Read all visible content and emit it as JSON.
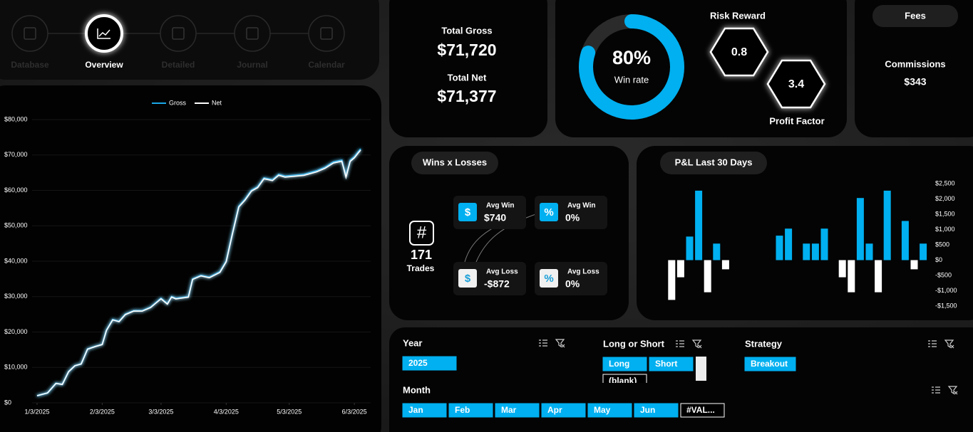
{
  "nav": {
    "items": [
      "Database",
      "Overview",
      "Detailed",
      "Journal",
      "Calendar"
    ],
    "active": 1
  },
  "kpi": {
    "gross_label": "Total Gross",
    "gross": "$71,720",
    "net_label": "Total Net",
    "net": "$71,377",
    "risk_label": "Risk Reward",
    "risk": "0.8",
    "pf_label": "Profit Factor",
    "pf": "3.4",
    "fees_title": "Fees",
    "comm_label": "Commissions",
    "comm": "$343"
  },
  "wins": {
    "title": "Wins x Losses",
    "hash": "#",
    "trades": "171",
    "trades_label": "Trades",
    "cards": [
      {
        "icon": "$",
        "label": "Avg Win",
        "value": "$740"
      },
      {
        "icon": "%",
        "label": "Avg Win",
        "value": "0%"
      },
      {
        "icon": "$",
        "label": "Avg Loss",
        "value": "-$872"
      },
      {
        "icon": "%",
        "label": "Avg Loss",
        "value": "0%"
      }
    ]
  },
  "pnl_title": "P&L Last 30 Days",
  "slicers": {
    "year": {
      "title": "Year",
      "items": [
        "2025"
      ]
    },
    "side": {
      "title": "Long or Short",
      "items": [
        "Long",
        "Short",
        "(blank)"
      ]
    },
    "strategy": {
      "title": "Strategy",
      "items": [
        "Breakout"
      ]
    },
    "month": {
      "title": "Month",
      "items": [
        "Jan",
        "Feb",
        "Mar",
        "Apr",
        "May",
        "Jun",
        "#VAL..."
      ]
    }
  },
  "chart_data": [
    {
      "type": "line",
      "x": [
        "1/3/2025",
        "1/8/2025",
        "1/12/2025",
        "1/15/2025",
        "1/18/2025",
        "1/21/2025",
        "1/24/2025",
        "1/27/2025",
        "1/31/2025",
        "2/3/2025",
        "2/5/2025",
        "2/8/2025",
        "2/11/2025",
        "2/14/2025",
        "2/18/2025",
        "2/22/2025",
        "2/26/2025",
        "3/1/2025",
        "3/3/2025",
        "3/6/2025",
        "3/8/2025",
        "3/10/2025",
        "3/16/2025",
        "3/18/2025",
        "3/22/2025",
        "3/26/2025",
        "3/31/2025",
        "4/3/2025",
        "4/6/2025",
        "4/9/2025",
        "4/12/2025",
        "4/15/2025",
        "4/18/2025",
        "4/21/2025",
        "4/25/2025",
        "4/28/2025",
        "5/1/2025",
        "5/10/2025",
        "5/16/2025",
        "5/20/2025",
        "5/24/2025",
        "5/28/2025",
        "5/30/2025",
        "6/1/2025",
        "6/3/2025",
        "6/5/2025",
        "6/6/2025"
      ],
      "series": [
        {
          "name": "Gross",
          "color": "#1aa8e8",
          "values": [
            2000,
            2800,
            5500,
            5200,
            8800,
            10500,
            11000,
            15200,
            16000,
            16500,
            20500,
            23500,
            23000,
            25000,
            26000,
            26000,
            27000,
            28500,
            29500,
            28000,
            30000,
            29500,
            30000,
            35000,
            36000,
            35500,
            37000,
            40000,
            48000,
            55500,
            57500,
            60000,
            61000,
            63500,
            63000,
            64500,
            64000,
            64500,
            65500,
            66500,
            68000,
            68500,
            64000,
            68500,
            69500,
            71000,
            71720
          ]
        },
        {
          "name": "Net",
          "color": "#ffffff",
          "values": [
            2000,
            2793,
            5486,
            5179,
            8772,
            10465,
            10958,
            15151,
            15944,
            16437,
            20430,
            23423,
            22916,
            24909,
            25902,
            25895,
            26888,
            28381,
            29374,
            27867,
            29860,
            29353,
            29846,
            34839,
            35832,
            35325,
            36818,
            39811,
            47804,
            55297,
            57290,
            59783,
            60776,
            63269,
            62762,
            64255,
            63748,
            64241,
            65234,
            66227,
            67720,
            68213,
            63706,
            68199,
            69192,
            70685,
            71377
          ]
        }
      ],
      "xlim": [
        "1/3/2025",
        "6/6/2025"
      ],
      "xticks": [
        "1/3/2025",
        "2/3/2025",
        "3/3/2025",
        "4/3/2025",
        "5/3/2025",
        "6/3/2025"
      ],
      "ylim": [
        0,
        80000
      ],
      "yticks": [
        {
          "value": 0,
          "label": "$0"
        },
        {
          "value": 10000,
          "label": "$10,000"
        },
        {
          "value": 20000,
          "label": "$20,000"
        },
        {
          "value": 30000,
          "label": "$30,000"
        },
        {
          "value": 40000,
          "label": "$40,000"
        },
        {
          "value": 50000,
          "label": "$50,000"
        },
        {
          "value": 60000,
          "label": "$60,000"
        },
        {
          "value": 70000,
          "label": "$70,000"
        },
        {
          "value": 80000,
          "label": "$80,000"
        }
      ],
      "grid": true,
      "legend": "top"
    },
    {
      "type": "bar",
      "values": [
        -1300,
        -560,
        770,
        2270,
        -1050,
        540,
        -300,
        null,
        null,
        null,
        null,
        null,
        800,
        1030,
        null,
        540,
        540,
        1030,
        null,
        -560,
        -1050,
        2030,
        540,
        -1050,
        2270,
        null,
        1280,
        -300,
        540
      ],
      "pos_color": "#00b0f0",
      "neg_color": "#ffffff",
      "ylim": [
        -1500,
        2600
      ],
      "yticks": [
        {
          "value": 2500,
          "label": "$2,500"
        },
        {
          "value": 2000,
          "label": "$2,000"
        },
        {
          "value": 1500,
          "label": "$1,500"
        },
        {
          "value": 1000,
          "label": "$1,000"
        },
        {
          "value": 500,
          "label": "$500"
        },
        {
          "value": 0,
          "label": "$0"
        },
        {
          "value": -500,
          "label": "-$500"
        },
        {
          "value": -1000,
          "label": "-$1,000"
        },
        {
          "value": -1500,
          "label": "-$1,500"
        }
      ]
    },
    {
      "type": "donut",
      "values": [
        80
      ],
      "value_labels": [
        "80%"
      ],
      "label": "Win rate",
      "total": 100,
      "color": "#00b0f0"
    }
  ]
}
